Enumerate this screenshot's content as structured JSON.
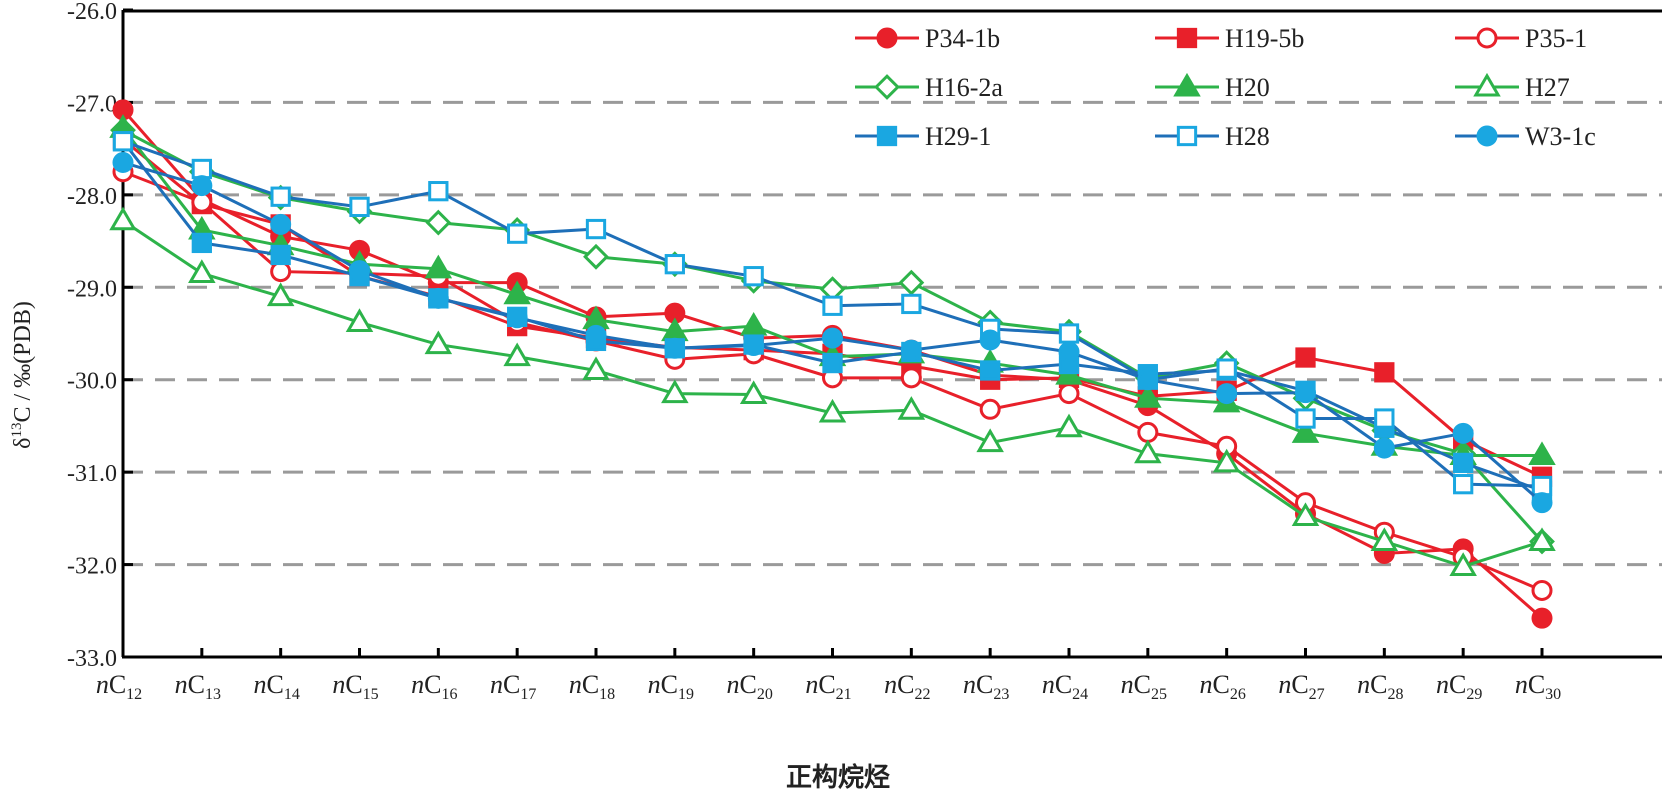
{
  "chart_data": {
    "type": "line",
    "title": "",
    "xlabel": "正构烷烃",
    "ylabel": {
      "prefix": "δ",
      "sup": "13",
      "rest": "C / ‰(PDB)"
    },
    "ylim": [
      -33.0,
      -26.0
    ],
    "yticks": [
      -26.0,
      -27.0,
      -28.0,
      -29.0,
      -30.0,
      -31.0,
      -32.0,
      -33.0
    ],
    "ytick_labels": [
      "-26.0",
      "-27.0",
      "-28.0",
      "-29.0",
      "-30.0",
      "-31.0",
      "-32.0",
      "-33.0"
    ],
    "grid": {
      "axis": "y",
      "style": "dashed",
      "values": [
        -27.0,
        -28.0,
        -29.0,
        -30.0,
        -31.0,
        -32.0
      ],
      "color": "#9a9a9a"
    },
    "categories": [
      {
        "prefix": "n",
        "base": "C",
        "sub": "12"
      },
      {
        "prefix": "n",
        "base": "C",
        "sub": "13"
      },
      {
        "prefix": "n",
        "base": "C",
        "sub": "14"
      },
      {
        "prefix": "n",
        "base": "C",
        "sub": "15"
      },
      {
        "prefix": "n",
        "base": "C",
        "sub": "16"
      },
      {
        "prefix": "n",
        "base": "C",
        "sub": "17"
      },
      {
        "prefix": "n",
        "base": "C",
        "sub": "18"
      },
      {
        "prefix": "n",
        "base": "C",
        "sub": "19"
      },
      {
        "prefix": "n",
        "base": "C",
        "sub": "20"
      },
      {
        "prefix": "n",
        "base": "C",
        "sub": "21"
      },
      {
        "prefix": "n",
        "base": "C",
        "sub": "22"
      },
      {
        "prefix": "n",
        "base": "C",
        "sub": "23"
      },
      {
        "prefix": "n",
        "base": "C",
        "sub": "24"
      },
      {
        "prefix": "n",
        "base": "C",
        "sub": "25"
      },
      {
        "prefix": "n",
        "base": "C",
        "sub": "26"
      },
      {
        "prefix": "n",
        "base": "C",
        "sub": "27"
      },
      {
        "prefix": "n",
        "base": "C",
        "sub": "28"
      },
      {
        "prefix": "n",
        "base": "C",
        "sub": "29"
      },
      {
        "prefix": "n",
        "base": "C",
        "sub": "30"
      }
    ],
    "legend": {
      "placement": "top-right",
      "columns": 3,
      "frame": false
    },
    "series": [
      {
        "name": "P34-1b",
        "color": "#e8202a",
        "line_color": "#e8202a",
        "marker": "circle",
        "filled": true,
        "values": [
          -27.08,
          -28.05,
          -28.45,
          -28.6,
          -28.95,
          -28.95,
          -29.32,
          -29.28,
          -29.55,
          -29.52,
          -29.68,
          -29.95,
          -30.0,
          -30.28,
          -30.8,
          -31.45,
          -31.88,
          -31.83,
          -32.58
        ]
      },
      {
        "name": "H19-5b",
        "color": "#e8202a",
        "line_color": "#e8202a",
        "marker": "square",
        "filled": true,
        "values": [
          -27.4,
          -28.1,
          -28.32,
          -28.88,
          -29.1,
          -29.42,
          -29.55,
          -29.65,
          -29.68,
          -29.72,
          -29.85,
          -30.0,
          -29.98,
          -30.18,
          -30.12,
          -29.76,
          -29.92,
          -30.65,
          -31.05
        ]
      },
      {
        "name": "P35-1",
        "color": "#e8202a",
        "line_color": "#e8202a",
        "marker": "circle",
        "filled": false,
        "values": [
          -27.75,
          -28.08,
          -28.83,
          -28.85,
          -28.88,
          -29.38,
          -29.58,
          -29.78,
          -29.72,
          -29.98,
          -29.98,
          -30.32,
          -30.15,
          -30.57,
          -30.72,
          -31.33,
          -31.65,
          -31.92,
          -32.28
        ]
      },
      {
        "name": "H16-2a",
        "color": "#2db34a",
        "line_color": "#2db34a",
        "marker": "diamond",
        "filled": false,
        "values": [
          -27.3,
          -27.75,
          -28.03,
          -28.18,
          -28.3,
          -28.38,
          -28.67,
          -28.75,
          -28.93,
          -29.02,
          -28.95,
          -29.38,
          -29.48,
          -29.98,
          -29.82,
          -30.2,
          -30.55,
          -30.8,
          -31.75
        ]
      },
      {
        "name": "H20",
        "color": "#2db34a",
        "line_color": "#2db34a",
        "marker": "triangle",
        "filled": true,
        "values": [
          -27.28,
          -28.38,
          -28.55,
          -28.75,
          -28.8,
          -29.08,
          -29.35,
          -29.48,
          -29.42,
          -29.75,
          -29.72,
          -29.82,
          -29.95,
          -30.2,
          -30.25,
          -30.58,
          -30.72,
          -30.82,
          -30.82
        ]
      },
      {
        "name": "H27",
        "color": "#2db34a",
        "line_color": "#2db34a",
        "marker": "triangle",
        "filled": false,
        "values": [
          -28.28,
          -28.85,
          -29.1,
          -29.38,
          -29.62,
          -29.75,
          -29.9,
          -30.15,
          -30.16,
          -30.36,
          -30.33,
          -30.68,
          -30.52,
          -30.8,
          -30.9,
          -31.48,
          -31.75,
          -32.02,
          -31.75
        ]
      },
      {
        "name": "H29-1",
        "color": "#1aa7e1",
        "line_color": "#1e6fb8",
        "marker": "square",
        "filled": true,
        "values": [
          -27.42,
          -28.52,
          -28.65,
          -28.88,
          -29.12,
          -29.32,
          -29.58,
          -29.66,
          -29.62,
          -29.82,
          -29.7,
          -29.9,
          -29.83,
          -29.94,
          -29.9,
          -30.12,
          -30.52,
          -30.9,
          -31.2
        ]
      },
      {
        "name": "H28",
        "color": "#1aa7e1",
        "line_color": "#1e6fb8",
        "marker": "square",
        "filled": false,
        "values": [
          -27.42,
          -27.72,
          -28.02,
          -28.13,
          -27.96,
          -28.42,
          -28.37,
          -28.75,
          -28.88,
          -29.2,
          -29.18,
          -29.45,
          -29.5,
          -30.0,
          -29.88,
          -30.42,
          -30.42,
          -31.13,
          -31.15
        ]
      },
      {
        "name": "W3-1c",
        "color": "#1aa7e1",
        "line_color": "#1e6fb8",
        "marker": "circle",
        "filled": true,
        "values": [
          -27.65,
          -27.9,
          -28.32,
          -28.82,
          -29.12,
          -29.33,
          -29.52,
          -29.66,
          -29.63,
          -29.55,
          -29.68,
          -29.57,
          -29.7,
          -30.0,
          -30.15,
          -30.14,
          -30.74,
          -30.58,
          -31.33
        ]
      }
    ]
  }
}
